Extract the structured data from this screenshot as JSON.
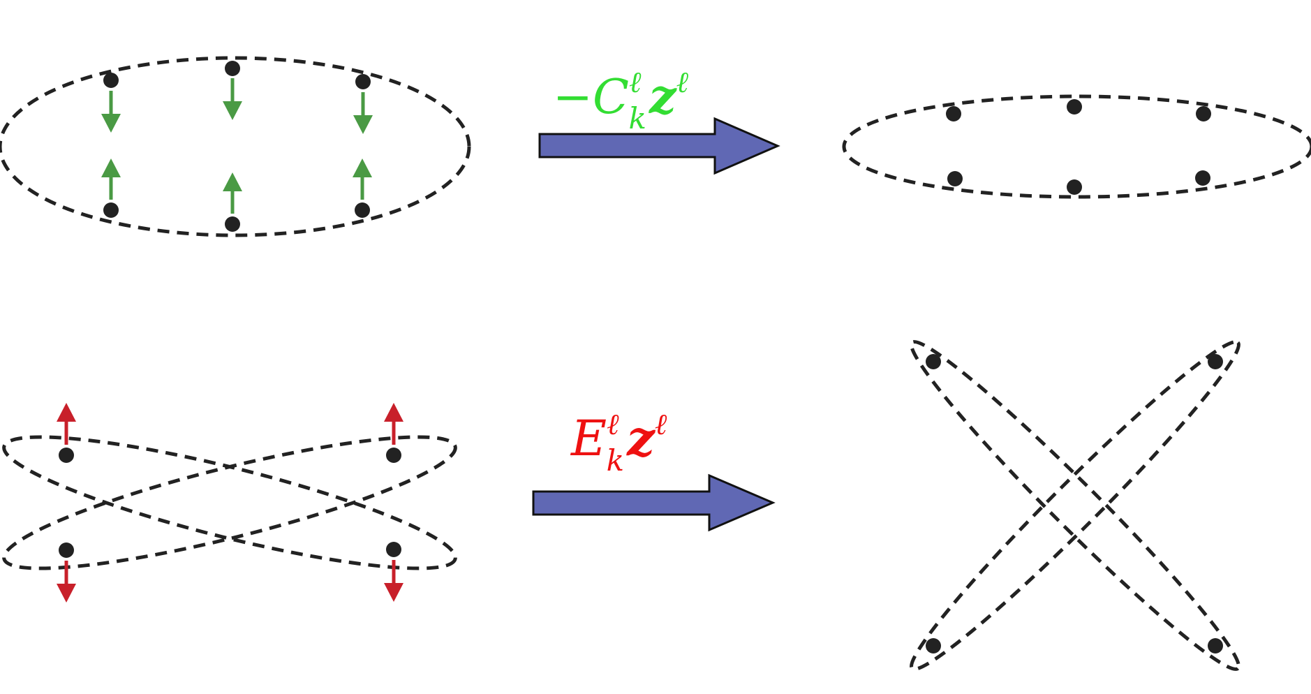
{
  "labels": {
    "top_operator": {
      "sign": "−",
      "base": "C",
      "superscript": "ℓ",
      "subscript": "k",
      "vector": "z",
      "vector_superscript": "ℓ",
      "color": "#33dd33"
    },
    "bottom_operator": {
      "base": "E",
      "superscript": "ℓ",
      "subscript": "k",
      "vector": "z",
      "vector_superscript": "ℓ",
      "color": "#ee1111"
    }
  },
  "colors": {
    "compress_arrows": "#4a9a44",
    "stretch_arrows": "#c8202a",
    "transition_arrows": "#6068b4",
    "dashed_outline": "#222222"
  }
}
